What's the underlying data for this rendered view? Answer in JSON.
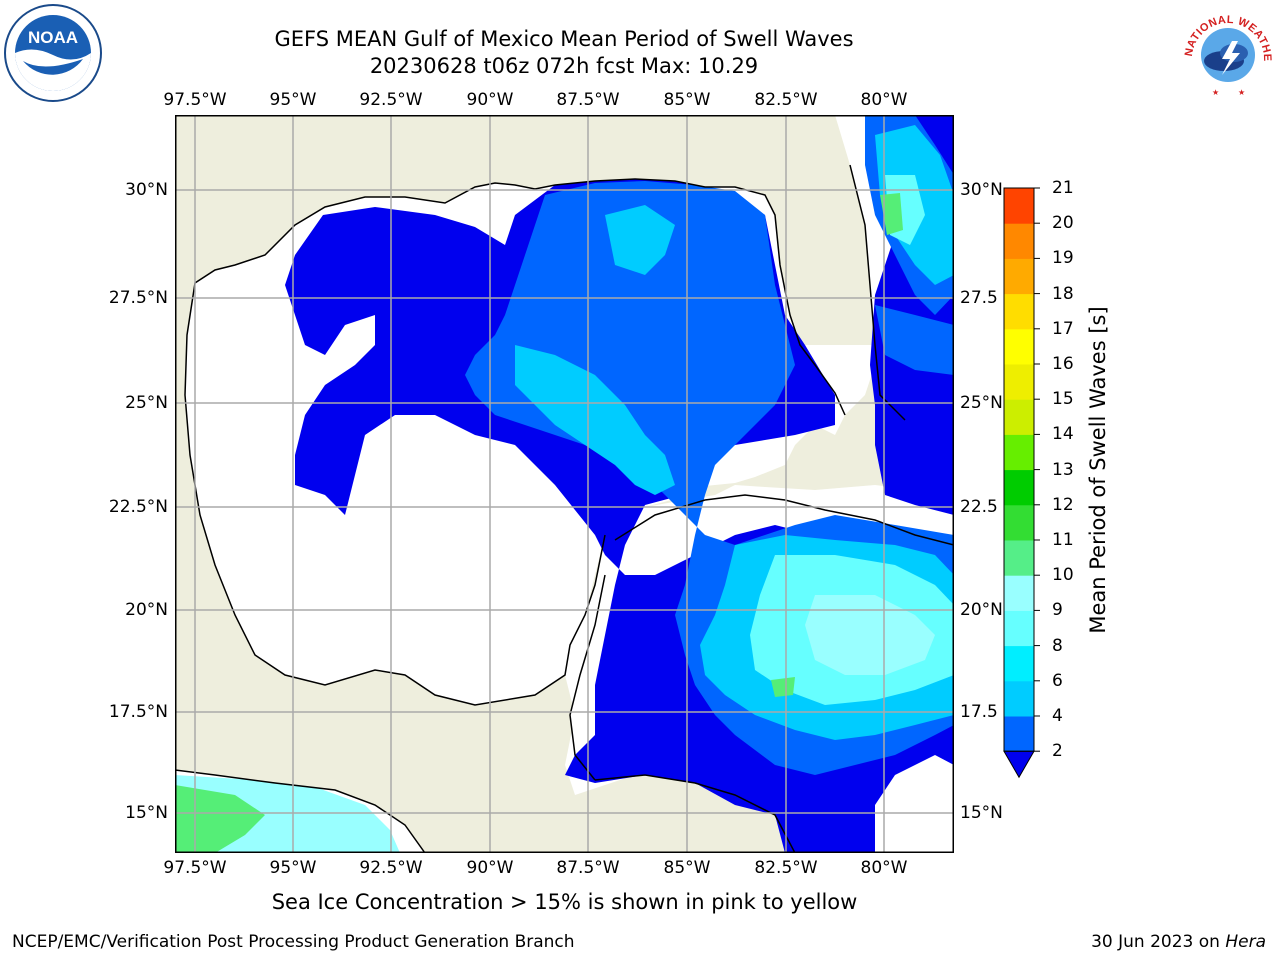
{
  "title_line1": "GEFS MEAN Gulf of Mexico Mean Period of Swell Waves",
  "title_line2": "20230628 t06z 072h fcst   Max: 10.29",
  "lon_ticks": [
    "97.5°W",
    "95°W",
    "92.5°W",
    "90°W",
    "87.5°W",
    "85°W",
    "82.5°W",
    "80°W"
  ],
  "lat_ticks_left": [
    "30°N",
    "27.5°N",
    "25°N",
    "22.5°N",
    "20°N",
    "17.5°N",
    "15°N"
  ],
  "lat_ticks_right": [
    "30°N",
    "27.5",
    "25°N",
    "22.5",
    "20°N",
    "17.5",
    "15°N"
  ],
  "colorbar": {
    "label": "Mean Period of Swell Waves [s]",
    "ticks": [
      "2",
      "4",
      "6",
      "8",
      "9",
      "10",
      "11",
      "12",
      "13",
      "14",
      "15",
      "16",
      "17",
      "18",
      "19",
      "20",
      "21"
    ],
    "colors": [
      "#0066ff",
      "#00ccff",
      "#00eeff",
      "#66ffff",
      "#99ffff",
      "#55ee88",
      "#33dd33",
      "#00cc00",
      "#66ee00",
      "#ccee00",
      "#eeee00",
      "#ffff00",
      "#ffdd00",
      "#ffaa00",
      "#ff8800",
      "#ff4400",
      "#ff0000"
    ],
    "extend_color": "#0000ee"
  },
  "colors": {
    "land": "#eeeedd",
    "ocean_low": "#ffffff",
    "swell_2": "#0000ee",
    "swell_4": "#0066ff",
    "swell_6": "#00ccff",
    "swell_8": "#66ffff",
    "swell_9": "#99ffff",
    "swell_10": "#55ee77",
    "grid": "#aaaaaa"
  },
  "note": "Sea Ice Concentration > 15% is shown in pink to yellow",
  "credit": "NCEP/EMC/Verification Post Processing Product Generation Branch",
  "date_prefix": "30 Jun 2023 on ",
  "date_machine": "Hera",
  "logos": {
    "noaa": "NOAA",
    "nws": "NATIONAL WEATHER SERVICE"
  }
}
